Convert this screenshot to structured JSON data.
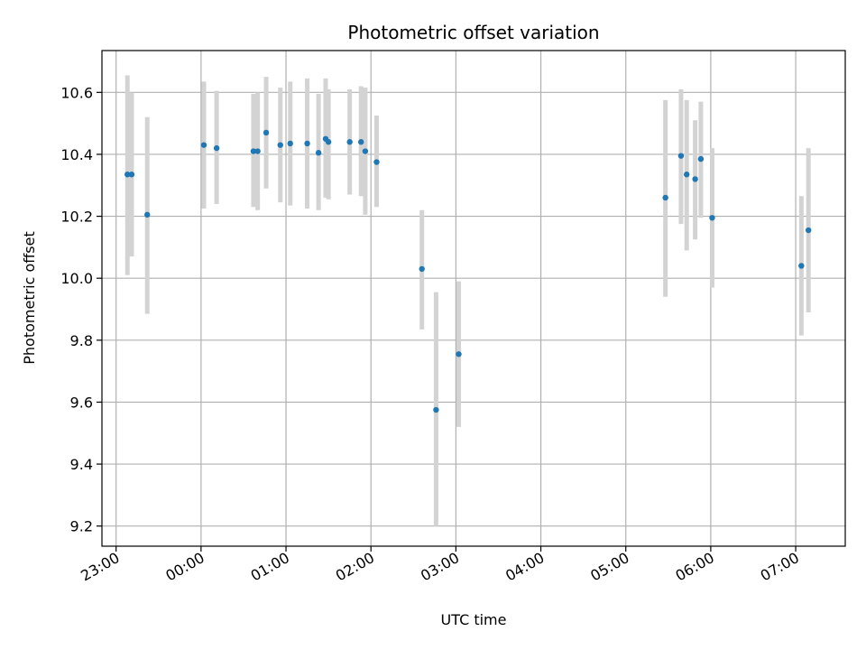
{
  "chart_data": {
    "type": "scatter",
    "title": "Photometric offset variation",
    "xlabel": "UTC time",
    "ylabel": "Photometric offset",
    "grid": true,
    "legend": "none",
    "x_axis_type": "time",
    "xlim": [
      "22:50",
      "07:35"
    ],
    "ylim": [
      9.135,
      10.735
    ],
    "x_ticks": [
      "23:00",
      "00:00",
      "01:00",
      "02:00",
      "03:00",
      "04:00",
      "05:00",
      "06:00",
      "07:00"
    ],
    "y_ticks": [
      "9.2",
      "9.4",
      "9.6",
      "9.8",
      "10.0",
      "10.2",
      "10.4",
      "10.6"
    ],
    "colors": {
      "points": "#1f77b4",
      "errorbars": "#d3d3d3",
      "grid": "#b0b0b0"
    },
    "series": [
      {
        "x": [
          "23:08",
          "23:11",
          "23:22",
          "00:02",
          "00:11",
          "00:37",
          "00:40",
          "00:46",
          "00:56",
          "01:03",
          "01:15",
          "01:23",
          "01:28",
          "01:30",
          "01:45",
          "01:53",
          "01:56",
          "02:04",
          "02:36",
          "02:46",
          "03:02",
          "05:28",
          "05:39",
          "05:43",
          "05:49",
          "05:53",
          "06:01",
          "07:04",
          "07:09"
        ],
        "y": [
          10.335,
          10.335,
          10.205,
          10.43,
          10.42,
          10.41,
          10.41,
          10.47,
          10.43,
          10.435,
          10.435,
          10.405,
          10.45,
          10.44,
          10.44,
          10.44,
          10.41,
          10.375,
          10.03,
          9.575,
          9.755,
          10.26,
          10.395,
          10.335,
          10.32,
          10.385,
          10.195,
          10.04,
          10.155
        ],
        "yerr_low": [
          10.01,
          10.07,
          9.885,
          10.225,
          10.24,
          10.23,
          10.22,
          10.29,
          10.245,
          10.235,
          10.225,
          10.22,
          10.26,
          10.255,
          10.27,
          10.265,
          10.205,
          10.23,
          9.835,
          9.2,
          9.52,
          9.94,
          10.175,
          10.09,
          10.125,
          10.195,
          9.97,
          9.815,
          9.89
        ],
        "yerr_high": [
          10.655,
          10.6,
          10.52,
          10.635,
          10.605,
          10.595,
          10.6,
          10.65,
          10.615,
          10.635,
          10.645,
          10.595,
          10.645,
          10.61,
          10.61,
          10.62,
          10.615,
          10.525,
          10.22,
          9.955,
          9.99,
          10.575,
          10.61,
          10.575,
          10.51,
          10.57,
          10.42,
          10.265,
          10.42
        ]
      }
    ]
  }
}
